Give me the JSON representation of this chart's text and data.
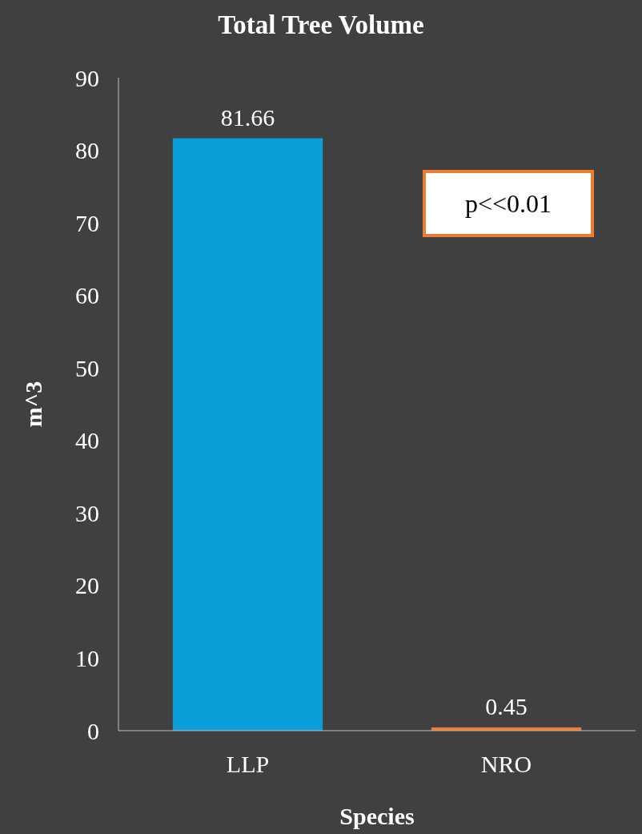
{
  "chart_data": {
    "type": "bar",
    "title": "Total Tree Volume",
    "xlabel": "Species",
    "ylabel": "m^3",
    "categories": [
      "LLP",
      "NRO"
    ],
    "values": [
      81.66,
      0.45
    ],
    "colors": [
      "#0b9ed9",
      "#ed7d31"
    ],
    "ylim": [
      0,
      90
    ],
    "yticks": [
      0,
      10,
      20,
      30,
      40,
      50,
      60,
      70,
      80,
      90
    ],
    "data_labels": true,
    "grid": false,
    "annotations": [
      "p<<0.01"
    ]
  }
}
